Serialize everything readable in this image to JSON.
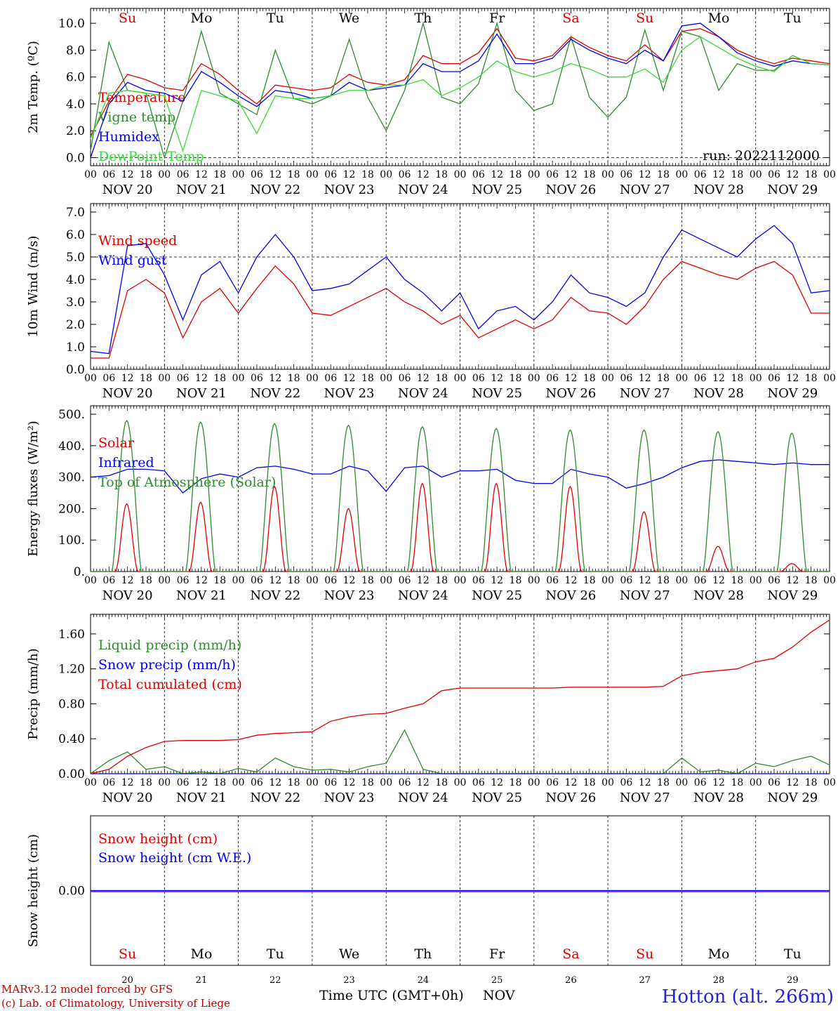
{
  "run_label": "run: 2022112000",
  "station": "Hotton (alt. 266m)",
  "credits": [
    "MARv3.12 model forced by GFS",
    "(c) Lab. of Climatology, University of Liege"
  ],
  "x_axis": {
    "title": "Time UTC (GMT+0h)",
    "month": "NOV",
    "hour_ticks": [
      "00",
      "06",
      "12",
      "18"
    ],
    "date_labels": [
      "NOV 20",
      "NOV 21",
      "NOV 22",
      "NOV 23",
      "NOV 24",
      "NOV 25",
      "NOV 26",
      "NOV 27",
      "NOV 28",
      "NOV 29"
    ],
    "day_numbers": [
      "20",
      "21",
      "22",
      "23",
      "24",
      "25",
      "26",
      "27",
      "28",
      "29"
    ],
    "weekdays": [
      "Su",
      "Mo",
      "Tu",
      "We",
      "Th",
      "Fr",
      "Sa",
      "Su",
      "Mo",
      "Tu"
    ],
    "weekday_colors": [
      "#e00000",
      "#000000",
      "#000000",
      "#000000",
      "#000000",
      "#000000",
      "#e00000",
      "#e00000",
      "#000000",
      "#000000"
    ]
  },
  "chart_data": [
    {
      "type": "line",
      "ylabel": "2m Temp. (ºC)",
      "ylim": [
        -0.6,
        11.0
      ],
      "yticks": [
        "0.0",
        "2.0",
        "4.0",
        "6.0",
        "8.0",
        "10.0"
      ],
      "ytick_values": [
        0,
        2,
        4,
        6,
        8,
        10
      ],
      "dashed_lines": [
        0
      ],
      "x_hours_since_nov20_00": [
        0,
        6,
        12,
        18,
        24,
        30,
        36,
        42,
        48,
        54,
        60,
        66,
        72,
        78,
        84,
        90,
        96,
        102,
        108,
        114,
        120,
        126,
        132,
        138,
        144,
        150,
        156,
        162,
        168,
        174,
        180,
        186,
        192,
        198,
        204,
        210,
        216,
        222,
        228,
        234,
        240
      ],
      "series": [
        {
          "name": "Temperature",
          "color": "#e00000",
          "values": [
            1.6,
            4.2,
            6.2,
            5.8,
            5.2,
            5.0,
            7.0,
            6.2,
            5.0,
            4.0,
            5.4,
            5.2,
            5.0,
            5.2,
            6.2,
            5.6,
            5.4,
            5.8,
            7.6,
            7.0,
            7.0,
            7.8,
            9.6,
            7.4,
            7.2,
            7.6,
            9.0,
            8.2,
            7.6,
            7.2,
            8.4,
            7.2,
            9.4,
            9.6,
            9.0,
            8.0,
            7.4,
            7.0,
            7.4,
            7.2,
            7.0
          ]
        },
        {
          "name": "Vigne temp",
          "color": "#2e8b2e",
          "values": [
            0.5,
            8.6,
            5.0,
            4.8,
            0.0,
            4.2,
            9.4,
            4.8,
            4.0,
            3.2,
            8.0,
            4.4,
            4.0,
            4.6,
            8.8,
            4.5,
            2.0,
            5.0,
            10.0,
            4.5,
            4.0,
            5.5,
            10.0,
            5.0,
            3.5,
            4.0,
            9.0,
            4.5,
            3.0,
            4.5,
            9.5,
            5.0,
            9.4,
            9.0,
            5.0,
            7.0,
            6.5,
            6.5,
            7.6,
            7.0,
            6.9
          ]
        },
        {
          "name": "Humidex",
          "color": "#0000ee",
          "values": [
            0.0,
            4.0,
            5.6,
            5.0,
            4.8,
            4.2,
            6.4,
            5.6,
            4.6,
            3.8,
            5.0,
            4.8,
            4.4,
            4.6,
            5.6,
            5.0,
            5.2,
            5.4,
            7.0,
            6.4,
            6.4,
            7.2,
            9.2,
            7.0,
            7.0,
            7.4,
            8.8,
            8.0,
            7.4,
            7.0,
            8.0,
            7.2,
            9.8,
            10.0,
            9.0,
            7.8,
            7.2,
            6.8,
            7.2,
            7.0,
            6.9
          ]
        },
        {
          "name": "DewPoint Temp",
          "color": "#33dd33",
          "values": [
            1.4,
            4.8,
            5.0,
            4.8,
            4.6,
            0.5,
            5.0,
            4.6,
            4.2,
            1.8,
            4.6,
            4.4,
            4.4,
            4.6,
            5.0,
            5.0,
            5.4,
            5.4,
            5.8,
            4.6,
            5.2,
            6.0,
            7.2,
            6.4,
            6.0,
            6.4,
            7.0,
            6.6,
            6.0,
            6.0,
            6.6,
            5.6,
            8.0,
            9.0,
            8.2,
            7.4,
            6.8,
            6.4,
            7.6,
            7.0,
            6.9
          ]
        }
      ]
    },
    {
      "type": "line",
      "ylabel": "10m Wind (m/s)",
      "ylim": [
        0.0,
        7.0
      ],
      "yticks": [
        "0.0",
        "1.0",
        "2.0",
        "3.0",
        "4.0",
        "5.0",
        "6.0",
        "7.0"
      ],
      "ytick_values": [
        0,
        1,
        2,
        3,
        4,
        5,
        6,
        7
      ],
      "dashed_lines": [
        5
      ],
      "x_hours_since_nov20_00": [
        0,
        6,
        12,
        18,
        24,
        30,
        36,
        42,
        48,
        54,
        60,
        66,
        72,
        78,
        84,
        90,
        96,
        102,
        108,
        114,
        120,
        126,
        132,
        138,
        144,
        150,
        156,
        162,
        168,
        174,
        180,
        186,
        192,
        198,
        204,
        210,
        216,
        222,
        228,
        234,
        240
      ],
      "series": [
        {
          "name": "Wind speed",
          "color": "#e00000",
          "values": [
            0.5,
            0.5,
            3.5,
            4.0,
            3.4,
            1.4,
            3.0,
            3.6,
            2.5,
            3.6,
            4.6,
            3.8,
            2.5,
            2.4,
            2.8,
            3.2,
            3.6,
            3.0,
            2.6,
            2.0,
            2.4,
            1.4,
            1.8,
            2.2,
            1.8,
            2.2,
            3.2,
            2.6,
            2.5,
            2.0,
            2.8,
            4.0,
            4.8,
            4.5,
            4.2,
            4.0,
            4.5,
            4.8,
            4.2,
            2.5,
            2.5
          ]
        },
        {
          "name": "Wind gust",
          "color": "#0000ee",
          "values": [
            0.8,
            0.7,
            5.5,
            5.6,
            4.2,
            2.2,
            4.2,
            4.8,
            3.4,
            5.0,
            6.0,
            5.0,
            3.5,
            3.6,
            3.8,
            4.4,
            5.0,
            4.0,
            3.4,
            2.6,
            3.4,
            1.8,
            2.6,
            2.8,
            2.2,
            3.0,
            4.2,
            3.4,
            3.2,
            2.8,
            3.4,
            5.0,
            6.2,
            5.8,
            5.4,
            5.0,
            5.8,
            6.4,
            5.6,
            3.4,
            3.5
          ]
        }
      ]
    },
    {
      "type": "line",
      "ylabel": "Energy fluxes (W/m²)",
      "ylim": [
        0,
        500
      ],
      "yticks": [
        "0.",
        "100.",
        "200.",
        "300.",
        "400.",
        "500."
      ],
      "ytick_values": [
        0,
        100,
        200,
        300,
        400,
        500
      ],
      "dashed_lines": [],
      "series": [
        {
          "name": "Solar",
          "color": "#e00000",
          "daily_peak": [
            215,
            220,
            270,
            200,
            280,
            280,
            270,
            190,
            80,
            25
          ]
        },
        {
          "name": "Infrared",
          "color": "#0000ee",
          "x_hours_since_nov20_00": [
            0,
            6,
            12,
            18,
            24,
            30,
            36,
            42,
            48,
            54,
            60,
            66,
            72,
            78,
            84,
            90,
            96,
            102,
            108,
            114,
            120,
            126,
            132,
            138,
            144,
            150,
            156,
            162,
            168,
            174,
            180,
            186,
            192,
            198,
            204,
            210,
            216,
            222,
            228,
            234,
            240
          ],
          "values": [
            300,
            305,
            325,
            325,
            320,
            250,
            295,
            310,
            300,
            330,
            335,
            325,
            310,
            310,
            335,
            320,
            255,
            330,
            335,
            300,
            320,
            320,
            325,
            290,
            280,
            280,
            325,
            310,
            300,
            265,
            280,
            300,
            330,
            350,
            355,
            350,
            345,
            340,
            345,
            340,
            340
          ]
        },
        {
          "name": "Top of Atmosphere (Solar)",
          "color": "#2e8b2e",
          "daily_peak": [
            480,
            475,
            470,
            465,
            460,
            455,
            450,
            450,
            445,
            440
          ]
        }
      ]
    },
    {
      "type": "line",
      "ylabel": "Precip (mm/h)",
      "ylim": [
        0,
        1.8
      ],
      "yticks": [
        "0.00",
        "0.40",
        "0.80",
        "1.20",
        "1.60"
      ],
      "ytick_values": [
        0,
        0.4,
        0.8,
        1.2,
        1.6
      ],
      "dashed_lines": [],
      "x_hours_since_nov20_00": [
        0,
        6,
        12,
        18,
        24,
        30,
        36,
        42,
        48,
        54,
        60,
        66,
        72,
        78,
        84,
        90,
        96,
        102,
        108,
        114,
        120,
        126,
        132,
        138,
        144,
        150,
        156,
        162,
        168,
        174,
        180,
        186,
        192,
        198,
        204,
        210,
        216,
        222,
        228,
        234,
        240
      ],
      "series": [
        {
          "name": "Liquid precip (mm/h)",
          "color": "#2e8b2e",
          "values": [
            0.0,
            0.15,
            0.25,
            0.05,
            0.08,
            0.0,
            0.02,
            0.0,
            0.06,
            0.02,
            0.18,
            0.08,
            0.04,
            0.05,
            0.02,
            0.08,
            0.12,
            0.5,
            0.05,
            0.0,
            0.0,
            0.0,
            0.0,
            0.0,
            0.0,
            0.0,
            0.0,
            0.0,
            0.0,
            0.0,
            0.0,
            0.0,
            0.18,
            0.02,
            0.04,
            0.0,
            0.12,
            0.08,
            0.15,
            0.2,
            0.1
          ]
        },
        {
          "name": "Snow precip (mm/h)",
          "color": "#0000ee",
          "values": [
            0,
            0,
            0,
            0,
            0,
            0,
            0,
            0,
            0,
            0,
            0,
            0,
            0,
            0,
            0,
            0,
            0,
            0,
            0,
            0,
            0,
            0,
            0,
            0,
            0,
            0,
            0,
            0,
            0,
            0,
            0,
            0,
            0,
            0,
            0,
            0,
            0,
            0,
            0,
            0,
            0
          ]
        },
        {
          "name": "Total cumulated (cm)",
          "color": "#e00000",
          "values": [
            0.0,
            0.05,
            0.2,
            0.3,
            0.37,
            0.38,
            0.38,
            0.38,
            0.39,
            0.44,
            0.46,
            0.47,
            0.48,
            0.6,
            0.65,
            0.68,
            0.69,
            0.75,
            0.8,
            0.95,
            0.98,
            0.98,
            0.98,
            0.98,
            0.98,
            0.98,
            0.99,
            0.99,
            0.99,
            0.99,
            0.99,
            1.0,
            1.12,
            1.16,
            1.18,
            1.2,
            1.28,
            1.32,
            1.45,
            1.62,
            1.76
          ]
        }
      ]
    },
    {
      "type": "line",
      "ylabel": "Snow height (cm)",
      "yticks": [
        "0.00"
      ],
      "ytick_values": [
        0
      ],
      "dashed_lines": [],
      "series": [
        {
          "name": "Snow height (cm)",
          "color": "#e00000",
          "values": [
            0,
            0
          ]
        },
        {
          "name": "Snow height (cm W.E.)",
          "color": "#0000ee",
          "values": [
            0,
            0
          ]
        }
      ]
    }
  ]
}
